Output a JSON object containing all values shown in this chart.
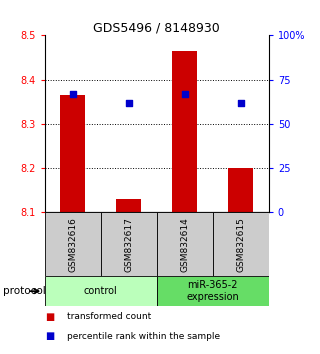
{
  "title": "GDS5496 / 8148930",
  "samples": [
    "GSM832616",
    "GSM832617",
    "GSM832614",
    "GSM832615"
  ],
  "bar_values": [
    8.365,
    8.13,
    8.465,
    8.2
  ],
  "bar_bottom": 8.1,
  "dot_percentiles": [
    67,
    62,
    67,
    62
  ],
  "bar_color": "#cc0000",
  "dot_color": "#0000cc",
  "ylim_left": [
    8.1,
    8.5
  ],
  "ylim_right": [
    0,
    100
  ],
  "yticks_left": [
    8.1,
    8.2,
    8.3,
    8.4,
    8.5
  ],
  "yticks_right": [
    0,
    25,
    50,
    75,
    100
  ],
  "ytick_labels_right": [
    "0",
    "25",
    "50",
    "75",
    "100%"
  ],
  "grid_lines": [
    8.2,
    8.3,
    8.4
  ],
  "groups": [
    {
      "label": "control",
      "samples": [
        0,
        1
      ],
      "color": "#bbffbb"
    },
    {
      "label": "miR-365-2\nexpression",
      "samples": [
        2,
        3
      ],
      "color": "#66dd66"
    }
  ],
  "protocol_label": "protocol",
  "legend_items": [
    {
      "color": "#cc0000",
      "label": "transformed count"
    },
    {
      "color": "#0000cc",
      "label": "percentile rank within the sample"
    }
  ],
  "label_box_color": "#cccccc",
  "bar_width": 0.45
}
